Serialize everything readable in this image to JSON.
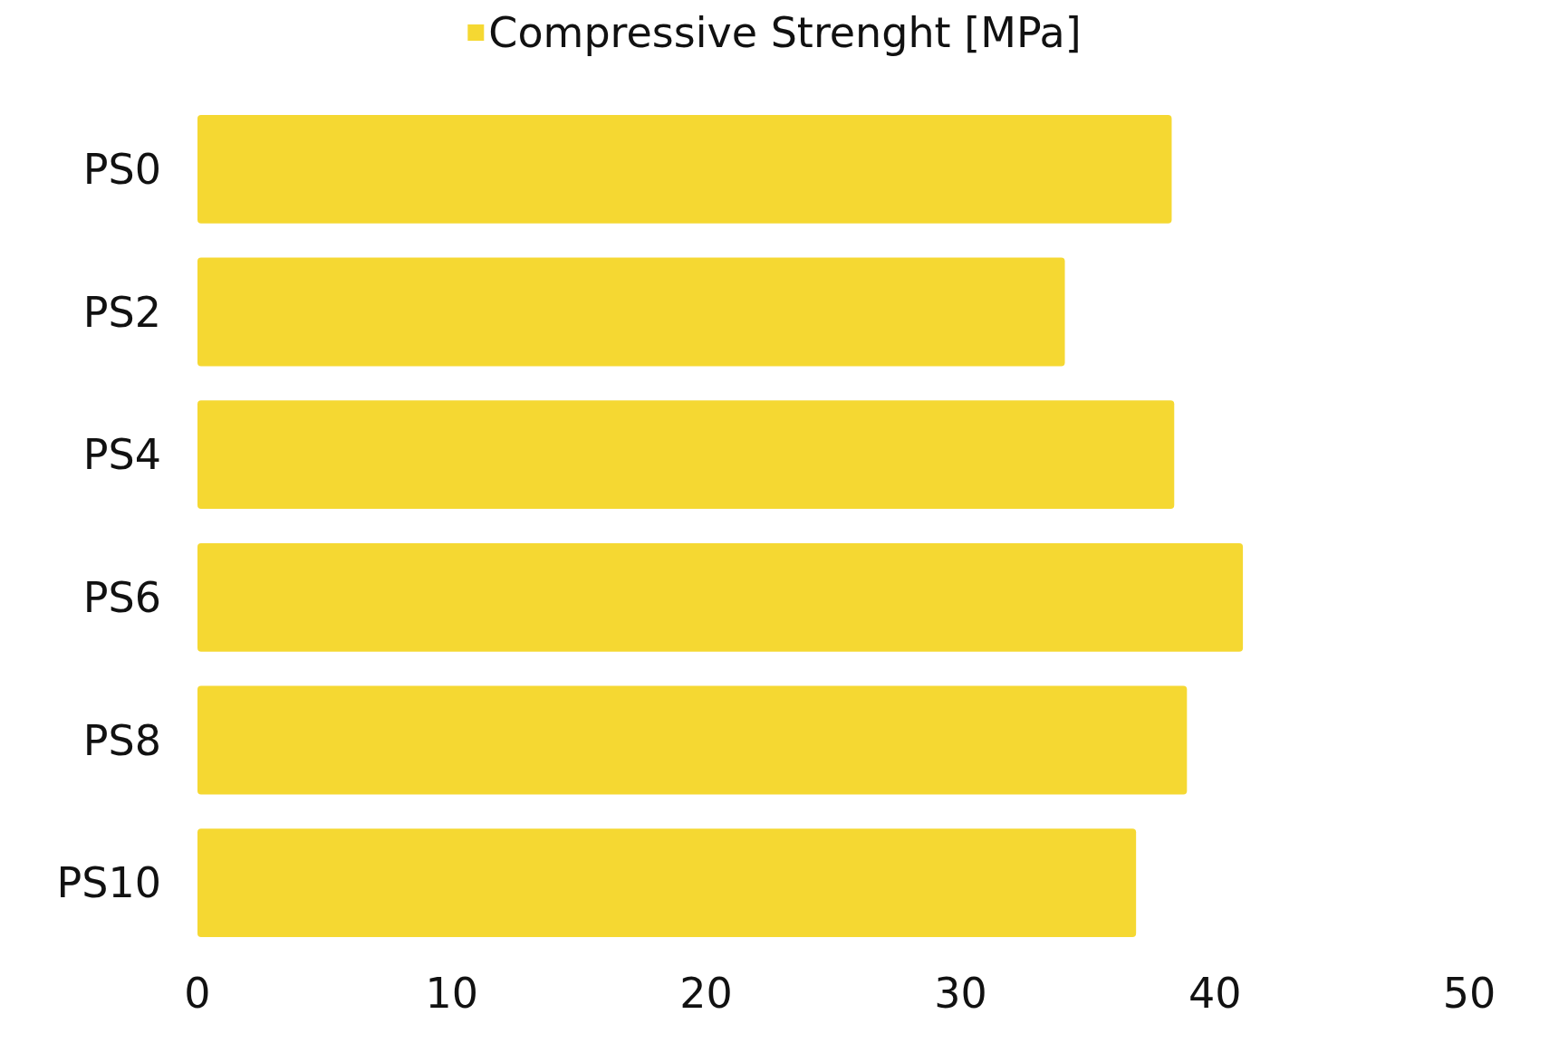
{
  "chart_data": {
    "type": "bar",
    "orientation": "horizontal",
    "categories": [
      "PS0",
      "PS2",
      "PS4",
      "PS6",
      "PS8",
      "PS10"
    ],
    "series": [
      {
        "name": "Compressive Strenght [MPa]",
        "color": "#f5d832",
        "values": [
          38.3,
          34.1,
          38.4,
          41.1,
          38.9,
          36.9
        ]
      }
    ],
    "xlim": [
      0,
      50
    ],
    "xticks": [
      0,
      10,
      20,
      30,
      40,
      50
    ],
    "grid": false,
    "legend": "top"
  }
}
